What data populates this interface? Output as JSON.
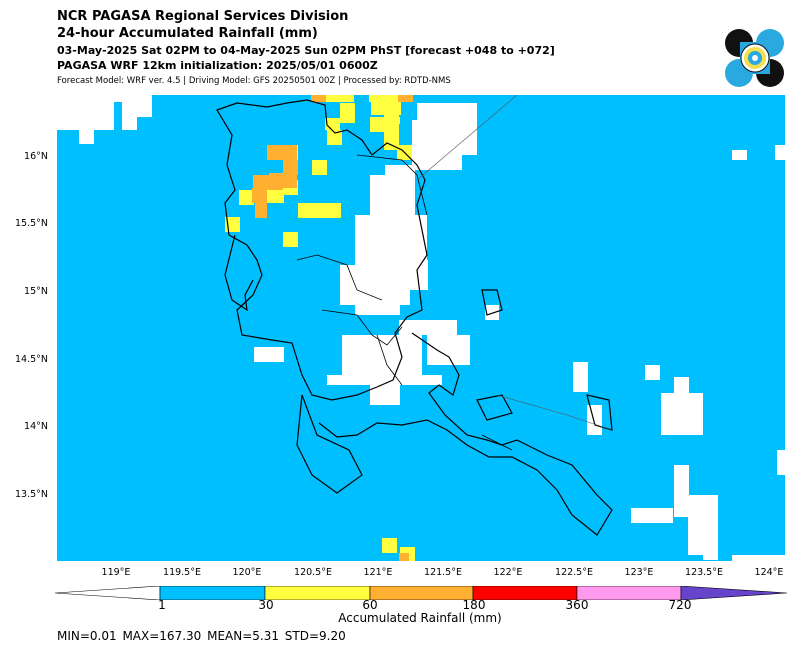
{
  "header": {
    "title": "NCR PAGASA Regional Services Division",
    "subtitle": "24-hour Accumulated Rainfall (mm)",
    "period": "03-May-2025 Sat 02PM to 04-May-2025 Sun 02PM PhST [forecast +048 to +072]",
    "init": "PAGASA WRF 12km initialization: 2025/05/01 0600Z",
    "model_info": "Forecast Model: WRF ver. 4.5 | Driving Model: GFS 20250501 00Z | Processed by: RDTD-NMS"
  },
  "logo": {
    "icon": "pagasa-seal-icon",
    "colors": [
      "#111111",
      "#29a9e0",
      "#f4e04d"
    ]
  },
  "map": {
    "lat_labels": [
      "16°N",
      "15.5°N",
      "15°N",
      "14.5°N",
      "14°N",
      "13.5°N"
    ],
    "lon_labels": [
      "119°E",
      "119.5°E",
      "120°E",
      "120.5°E",
      "121°E",
      "121.5°E",
      "122°E",
      "122.5°E",
      "123°E",
      "123.5°E",
      "124°E"
    ],
    "rain_colors": {
      "none": "#ffffff",
      "light": "#00bfff",
      "moderate": "#ffff40",
      "heavy": "#ffb030"
    }
  },
  "colorbar": {
    "ticks": [
      "1",
      "30",
      "60",
      "180",
      "360",
      "720"
    ],
    "colors": [
      "#ffffff",
      "#00bfff",
      "#ffff40",
      "#ffb030",
      "#ff0000",
      "#ff99ee",
      "#6644cc"
    ],
    "title": "Accumulated Rainfall (mm)"
  },
  "stats": "MIN=0.01   MAX=167.30   MEAN=5.31   STD=9.20"
}
